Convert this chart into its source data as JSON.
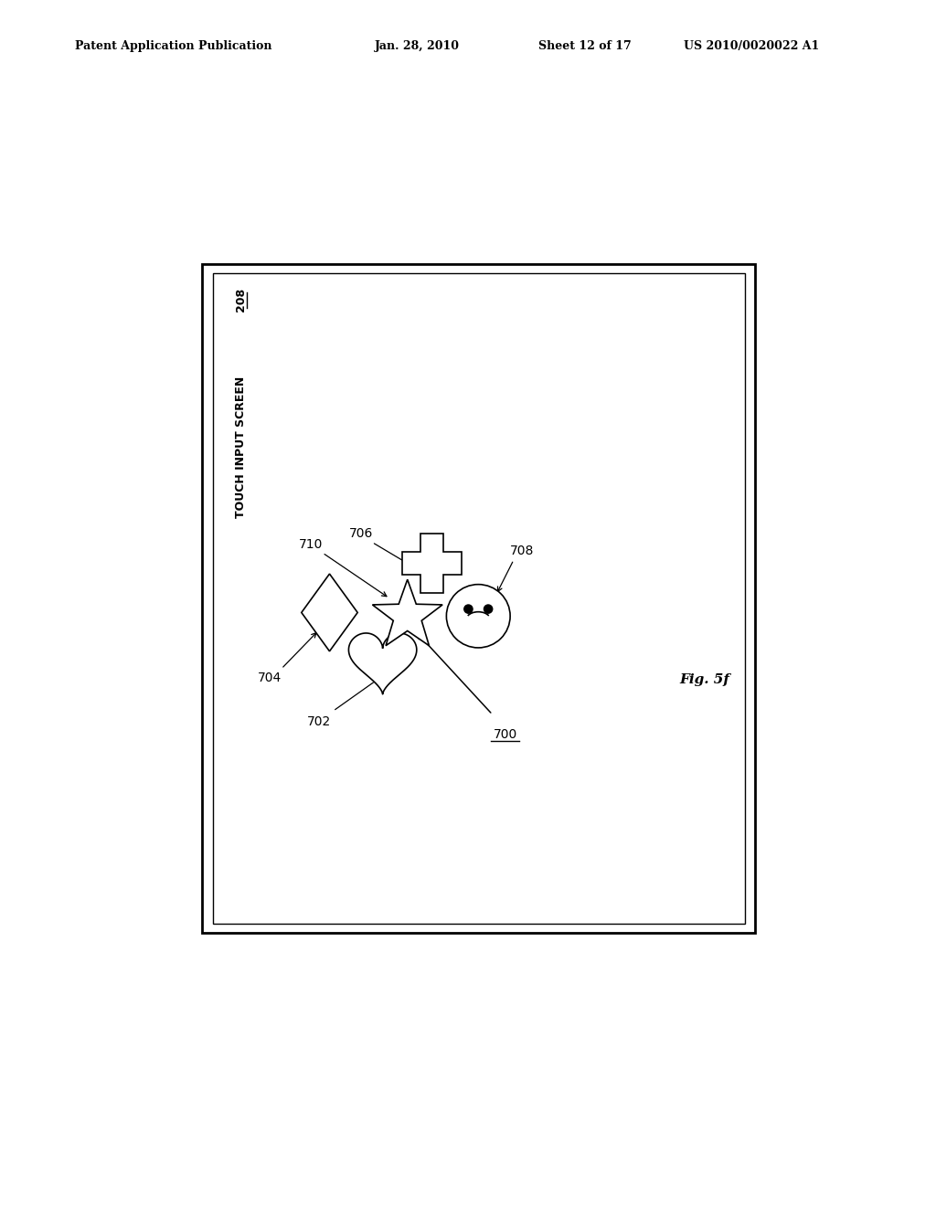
{
  "bg_color": "#ffffff",
  "header_text": "Patent Application Publication",
  "header_date": "Jan. 28, 2010",
  "header_sheet": "Sheet 12 of 17",
  "header_patent": "US 2010/0020022 A1",
  "fig_label": "Fig. 5f",
  "screen_label": "TOUCH INPUT SCREEN",
  "screen_label_num": "208",
  "label_700": "700",
  "label_702": "702",
  "label_704": "704",
  "label_706": "706",
  "label_708": "708",
  "label_710": "710"
}
